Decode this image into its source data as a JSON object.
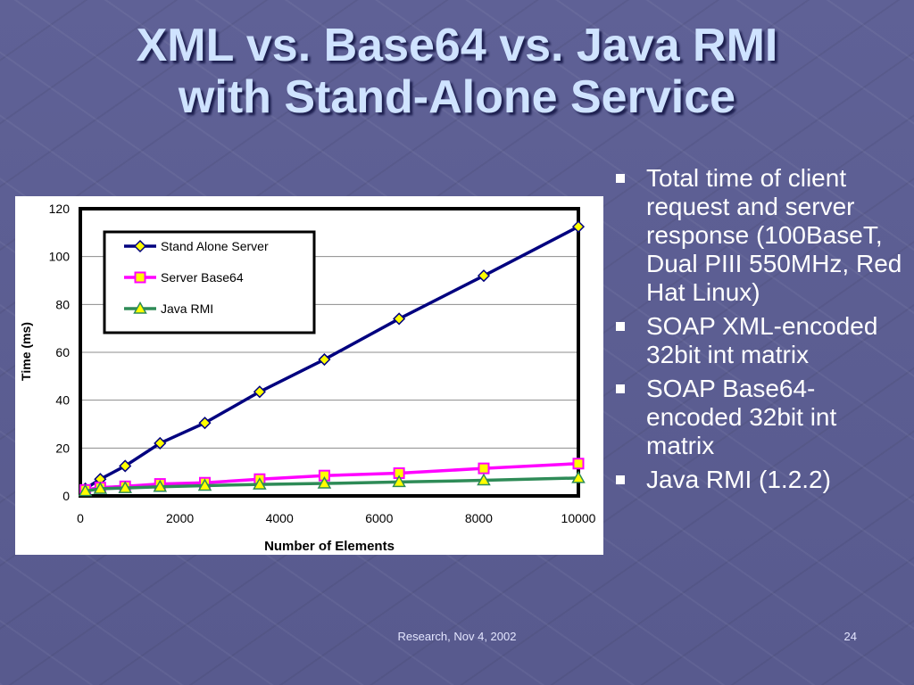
{
  "slide": {
    "title_line1": "XML vs. Base64 vs. Java RMI",
    "title_line2": "with Stand-Alone Service",
    "footer_text": "Research, Nov 4, 2002",
    "page_number": "24"
  },
  "bullets": [
    "Total time of client request and server response (100BaseT, Dual PIII 550MHz, Red Hat Linux)",
    "SOAP XML-encoded 32bit int matrix",
    "SOAP Base64-encoded 32bit int matrix",
    "Java RMI (1.2.2)"
  ],
  "chart_data": {
    "type": "line",
    "xlabel": "Number of Elements",
    "ylabel": "Time (ms)",
    "xlim": [
      0,
      10000
    ],
    "ylim": [
      0,
      120
    ],
    "x_ticks": [
      0,
      2000,
      4000,
      6000,
      8000,
      10000
    ],
    "y_ticks": [
      0,
      20,
      40,
      60,
      80,
      100,
      120
    ],
    "grid": "horizontal",
    "legend_position": "top-left",
    "series": [
      {
        "name": "Stand Alone Server",
        "color": "#00007f",
        "marker": "diamond",
        "marker_color": "#ffff00",
        "x": [
          100,
          400,
          900,
          1600,
          2500,
          3600,
          4900,
          6400,
          8100,
          10000
        ],
        "y": [
          3,
          7,
          12.5,
          22,
          30.5,
          43.5,
          57,
          74,
          92,
          112.5
        ]
      },
      {
        "name": "Server Base64",
        "color": "#ff00ff",
        "marker": "square",
        "marker_color": "#ffff00",
        "x": [
          100,
          400,
          900,
          1600,
          2500,
          3600,
          4900,
          6400,
          8100,
          10000
        ],
        "y": [
          2.5,
          3.5,
          4,
          5,
          5.5,
          7,
          8.5,
          9.5,
          11.5,
          13.5
        ]
      },
      {
        "name": "Java RMI",
        "color": "#2e8b57",
        "marker": "triangle",
        "marker_color": "#ffff00",
        "x": [
          100,
          400,
          900,
          1600,
          2500,
          3600,
          4900,
          6400,
          8100,
          10000
        ],
        "y": [
          2,
          3,
          3.3,
          3.8,
          4.3,
          4.8,
          5.2,
          5.8,
          6.5,
          7.5
        ]
      }
    ]
  }
}
